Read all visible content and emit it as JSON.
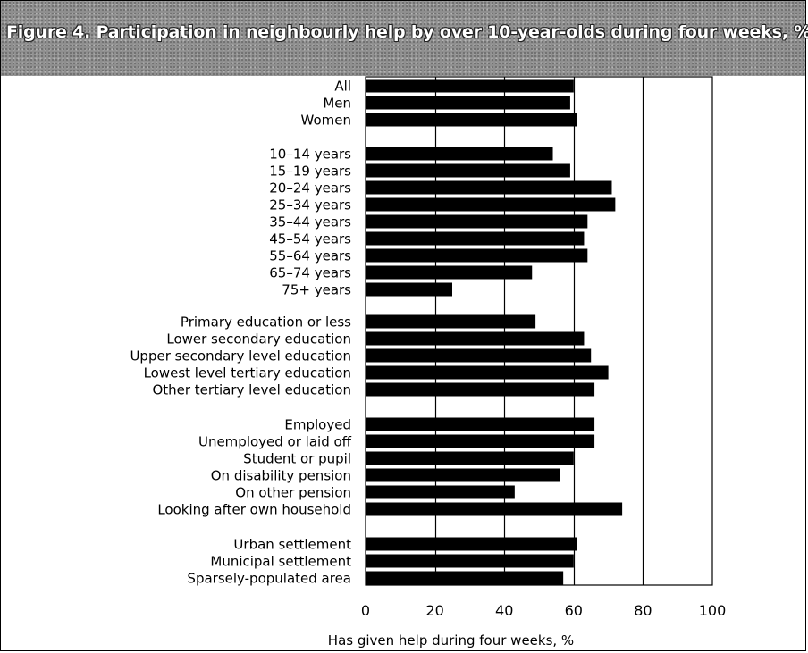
{
  "chart_data": {
    "type": "bar",
    "orientation": "horizontal",
    "title": "Figure 4. Participation in neighbourly help by over 10-year-olds during four weeks, %.",
    "xlabel": "Has given help during four weeks, %",
    "ylabel": "",
    "xlim": [
      0,
      100
    ],
    "x_ticks": [
      0,
      20,
      40,
      60,
      80,
      100
    ],
    "grid": "vertical",
    "bar_color": "#000000",
    "groups": [
      {
        "categories": [
          "All",
          "Men",
          "Women"
        ],
        "values": [
          60,
          59,
          61
        ]
      },
      {
        "categories": [
          "10–14 years",
          "15–19 years",
          "20–24 years",
          "25–34 years",
          "35–44 years",
          "45–54 years",
          "55–64 years",
          "65–74 years",
          "75+ years"
        ],
        "values": [
          54,
          59,
          71,
          72,
          64,
          63,
          64,
          48,
          25
        ]
      },
      {
        "categories": [
          "Primary education or less",
          "Lower secondary education",
          "Upper secondary level education",
          "Lowest level tertiary education",
          "Other tertiary level education"
        ],
        "values": [
          49,
          63,
          65,
          70,
          66
        ]
      },
      {
        "categories": [
          "Employed",
          "Unemployed or laid off",
          "Student or pupil",
          "On disability pension",
          "On other pension",
          "Looking after own household"
        ],
        "values": [
          66,
          66,
          60,
          56,
          43,
          74
        ]
      },
      {
        "categories": [
          "Urban settlement",
          "Municipal settlement",
          "Sparsely-populated area"
        ],
        "values": [
          61,
          60,
          57
        ]
      }
    ]
  }
}
